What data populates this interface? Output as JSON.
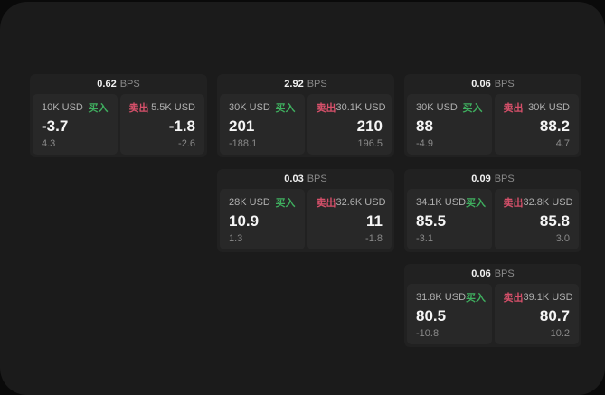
{
  "labels": {
    "bps": "BPS",
    "buy": "买入",
    "sell": "卖出"
  },
  "colors": {
    "page_bg": "#0a0a0a",
    "container_bg": "#1b1b1b",
    "card_bg": "#212121",
    "panel_bg": "#282828",
    "buy_green": "#3faf5f",
    "sell_red": "#d6506a",
    "value_white": "#f5f5f5",
    "muted_gray": "#8a8a8a"
  },
  "cards": [
    {
      "bps": "0.62",
      "buy": {
        "amount": "10K USD",
        "value": "-3.7",
        "delta": "4.3"
      },
      "sell": {
        "amount": "5.5K USD",
        "value": "-1.8",
        "delta": "-2.6"
      }
    },
    {
      "bps": "2.92",
      "buy": {
        "amount": "30K USD",
        "value": "201",
        "delta": "-188.1"
      },
      "sell": {
        "amount": "30.1K USD",
        "value": "210",
        "delta": "196.5"
      }
    },
    {
      "bps": "0.06",
      "buy": {
        "amount": "30K USD",
        "value": "88",
        "delta": "-4.9"
      },
      "sell": {
        "amount": "30K USD",
        "value": "88.2",
        "delta": "4.7"
      }
    },
    {
      "bps": "0.03",
      "buy": {
        "amount": "28K USD",
        "value": "10.9",
        "delta": "1.3"
      },
      "sell": {
        "amount": "32.6K USD",
        "value": "11",
        "delta": "-1.8"
      }
    },
    {
      "bps": "0.09",
      "buy": {
        "amount": "34.1K USD",
        "value": "85.5",
        "delta": "-3.1"
      },
      "sell": {
        "amount": "32.8K USD",
        "value": "85.8",
        "delta": "3.0"
      }
    },
    {
      "bps": "0.06",
      "buy": {
        "amount": "31.8K USD",
        "value": "80.5",
        "delta": "-10.8"
      },
      "sell": {
        "amount": "39.1K USD",
        "value": "80.7",
        "delta": "10.2"
      }
    }
  ]
}
